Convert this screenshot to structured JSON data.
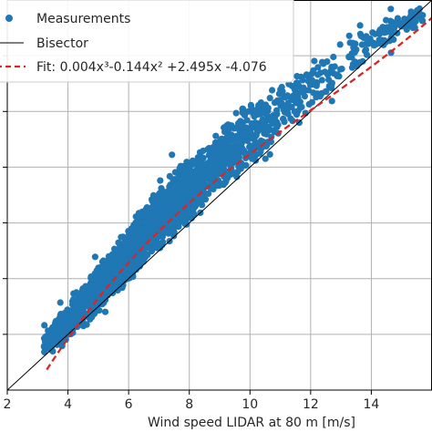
{
  "chart_data": {
    "type": "scatter",
    "xlabel": "Wind speed LIDAR at 80 m [m/s]",
    "ylabel": "",
    "xlim": [
      2,
      16
    ],
    "ylim": [
      2,
      16
    ],
    "xticks": [
      2,
      4,
      6,
      8,
      10,
      12,
      14
    ],
    "xtick_labels": [
      "2",
      "4",
      "6",
      "8",
      "10",
      "12",
      "14"
    ],
    "grid": true,
    "legend_placement": "top-left",
    "series": [
      {
        "name": "Measurements",
        "kind": "scatter",
        "color": "#1f77b4",
        "point_count": 2200,
        "band": [
          {
            "x": 3.2,
            "y_low": 3.3,
            "y_high": 4.0
          },
          {
            "x": 4.0,
            "y_low": 3.7,
            "y_high": 5.2
          },
          {
            "x": 5.0,
            "y_low": 4.6,
            "y_high": 6.6
          },
          {
            "x": 6.0,
            "y_low": 5.8,
            "y_high": 8.0
          },
          {
            "x": 7.0,
            "y_low": 7.0,
            "y_high": 9.3
          },
          {
            "x": 8.0,
            "y_low": 8.0,
            "y_high": 10.4
          },
          {
            "x": 9.0,
            "y_low": 9.0,
            "y_high": 11.4
          },
          {
            "x": 10.0,
            "y_low": 10.0,
            "y_high": 12.3
          },
          {
            "x": 11.0,
            "y_low": 10.9,
            "y_high": 13.1
          },
          {
            "x": 12.0,
            "y_low": 11.9,
            "y_high": 13.9
          },
          {
            "x": 13.0,
            "y_low": 12.9,
            "y_high": 14.6
          },
          {
            "x": 14.0,
            "y_low": 13.8,
            "y_high": 15.2
          },
          {
            "x": 15.0,
            "y_low": 14.7,
            "y_high": 15.6
          },
          {
            "x": 15.7,
            "y_low": 15.1,
            "y_high": 15.9
          }
        ]
      },
      {
        "name": "Bisector",
        "kind": "line",
        "color": "#000000",
        "x": [
          2,
          16
        ],
        "y": [
          2,
          16
        ]
      },
      {
        "name": "Fit: 0.004x³-0.144x² +2.495x -4.076",
        "kind": "curve",
        "color": "#d62728",
        "style": "dashed",
        "coefficients": {
          "a3": 0.004,
          "a2": -0.144,
          "a1": 2.495,
          "a0": -4.076
        },
        "x_range": [
          3.3,
          16
        ]
      }
    ]
  }
}
